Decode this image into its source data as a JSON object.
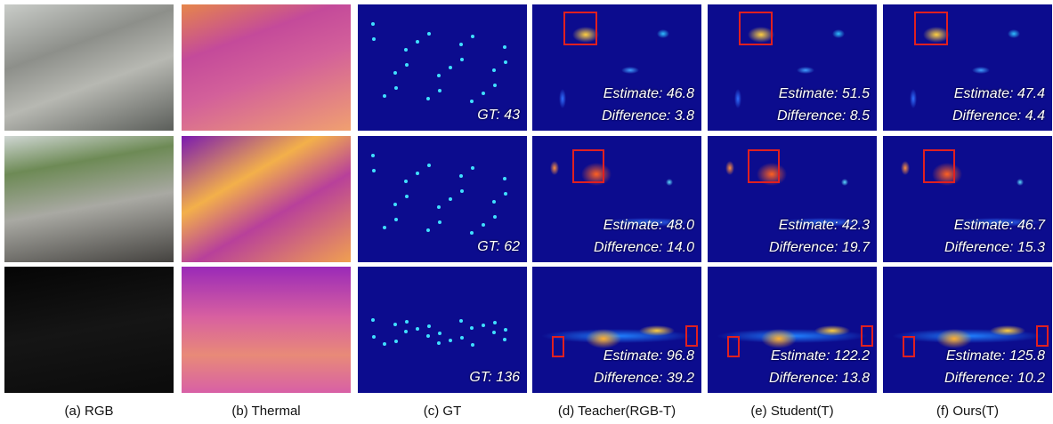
{
  "columns": [
    "(a) RGB",
    "(b) Thermal",
    "(c) GT",
    "(d) Teacher(RGB-T)",
    "(e) Student(T)",
    "(f) Ours(T)"
  ],
  "rows": [
    {
      "gt": "GT: 43",
      "teacher": {
        "estimate": "Estimate: 46.8",
        "difference": "Difference: 3.8"
      },
      "student": {
        "estimate": "Estimate: 51.5",
        "difference": "Difference: 8.5"
      },
      "ours": {
        "estimate": "Estimate: 47.4",
        "difference": "Difference: 4.4"
      }
    },
    {
      "gt": "GT: 62",
      "teacher": {
        "estimate": "Estimate: 48.0",
        "difference": "Difference: 14.0"
      },
      "student": {
        "estimate": "Estimate: 42.3",
        "difference": "Difference: 19.7"
      },
      "ours": {
        "estimate": "Estimate: 46.7",
        "difference": "Difference: 15.3"
      }
    },
    {
      "gt": "GT: 136",
      "teacher": {
        "estimate": "Estimate: 96.8",
        "difference": "Difference: 39.2"
      },
      "student": {
        "estimate": "Estimate: 122.2",
        "difference": "Difference: 13.8"
      },
      "ours": {
        "estimate": "Estimate: 125.8",
        "difference": "Difference: 10.2"
      }
    }
  ]
}
